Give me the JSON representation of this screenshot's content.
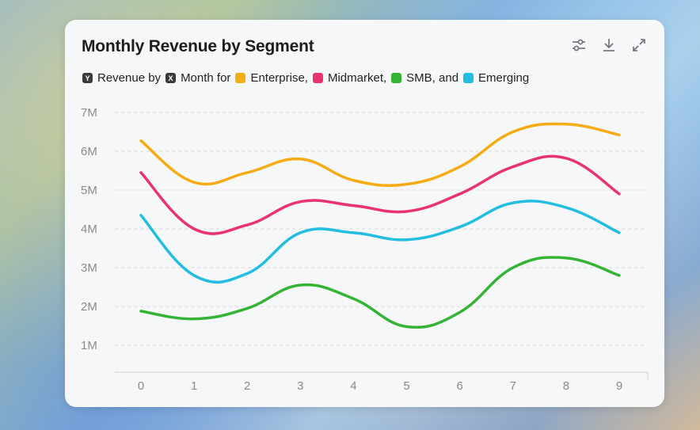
{
  "card": {
    "title": "Monthly Revenue by Segment"
  },
  "toolbar": {
    "filter_icon": "sliders-icon",
    "download_icon": "download-icon",
    "expand_icon": "expand-icon"
  },
  "legend": {
    "y_badge": "Y",
    "y_text": "Revenue by",
    "x_badge": "X",
    "x_text": "Month for",
    "entries": [
      {
        "label": "Enterprise,",
        "color": "#f5ac14"
      },
      {
        "label": "Midmarket,",
        "color": "#e8336f"
      },
      {
        "label": "SMB, and",
        "color": "#35b335"
      },
      {
        "label": "Emerging",
        "color": "#22bde0"
      }
    ]
  },
  "chart_data": {
    "type": "line",
    "title": "Monthly Revenue by Segment",
    "xlabel": "Month",
    "ylabel": "Revenue",
    "x": [
      0,
      1,
      2,
      3,
      4,
      5,
      6,
      7,
      8,
      9
    ],
    "y_ticks": [
      "1M",
      "2M",
      "3M",
      "4M",
      "5M",
      "6M",
      "7M"
    ],
    "ylim": [
      0,
      7
    ],
    "grid": true,
    "series": [
      {
        "name": "Enterprise",
        "color": "#f5ac14",
        "values": [
          6.27,
          5.2,
          5.45,
          5.8,
          5.25,
          5.15,
          5.6,
          6.5,
          6.7,
          6.42
        ]
      },
      {
        "name": "Midmarket",
        "color": "#e8336f",
        "values": [
          5.45,
          4.0,
          4.1,
          4.7,
          4.6,
          4.45,
          4.9,
          5.6,
          5.82,
          4.9
        ]
      },
      {
        "name": "SMB",
        "color": "#35b335",
        "values": [
          1.88,
          1.68,
          1.95,
          2.55,
          2.2,
          1.48,
          1.85,
          3.0,
          3.25,
          2.8
        ]
      },
      {
        "name": "Emerging",
        "color": "#22bde0",
        "values": [
          4.35,
          2.8,
          2.85,
          3.9,
          3.9,
          3.72,
          4.05,
          4.67,
          4.55,
          3.9
        ]
      }
    ]
  }
}
